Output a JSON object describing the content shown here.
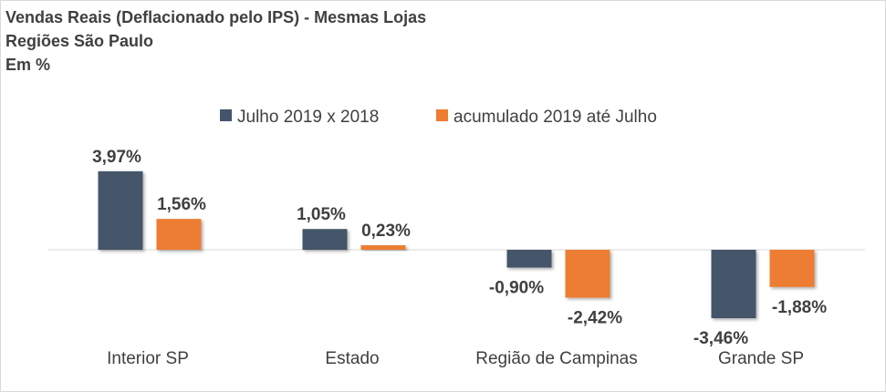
{
  "chart_data": {
    "type": "bar",
    "title": "Vendas Reais (Deflacionado pelo IPS) - Mesmas Lojas",
    "subtitle": "Regiões São Paulo",
    "unit_note": "Em %",
    "categories": [
      "Interior SP",
      "Estado",
      "Região de Campinas",
      "Grande SP"
    ],
    "series": [
      {
        "name": "Julho 2019 x 2018",
        "color": "#44546a",
        "values": [
          3.97,
          1.05,
          -0.9,
          -3.46
        ],
        "labels": [
          "3,97%",
          "1,05%",
          "-0,90%",
          "-3,46%"
        ]
      },
      {
        "name": "acumulado 2019 até Julho",
        "color": "#ed7d31",
        "values": [
          1.56,
          0.23,
          -2.42,
          -1.88
        ],
        "labels": [
          "1,56%",
          "0,23%",
          "-2,42%",
          "-1,88%"
        ]
      }
    ],
    "ylim": [
      -4,
      4
    ],
    "grid": false,
    "legend_position": "top-center",
    "data_labels": true
  }
}
